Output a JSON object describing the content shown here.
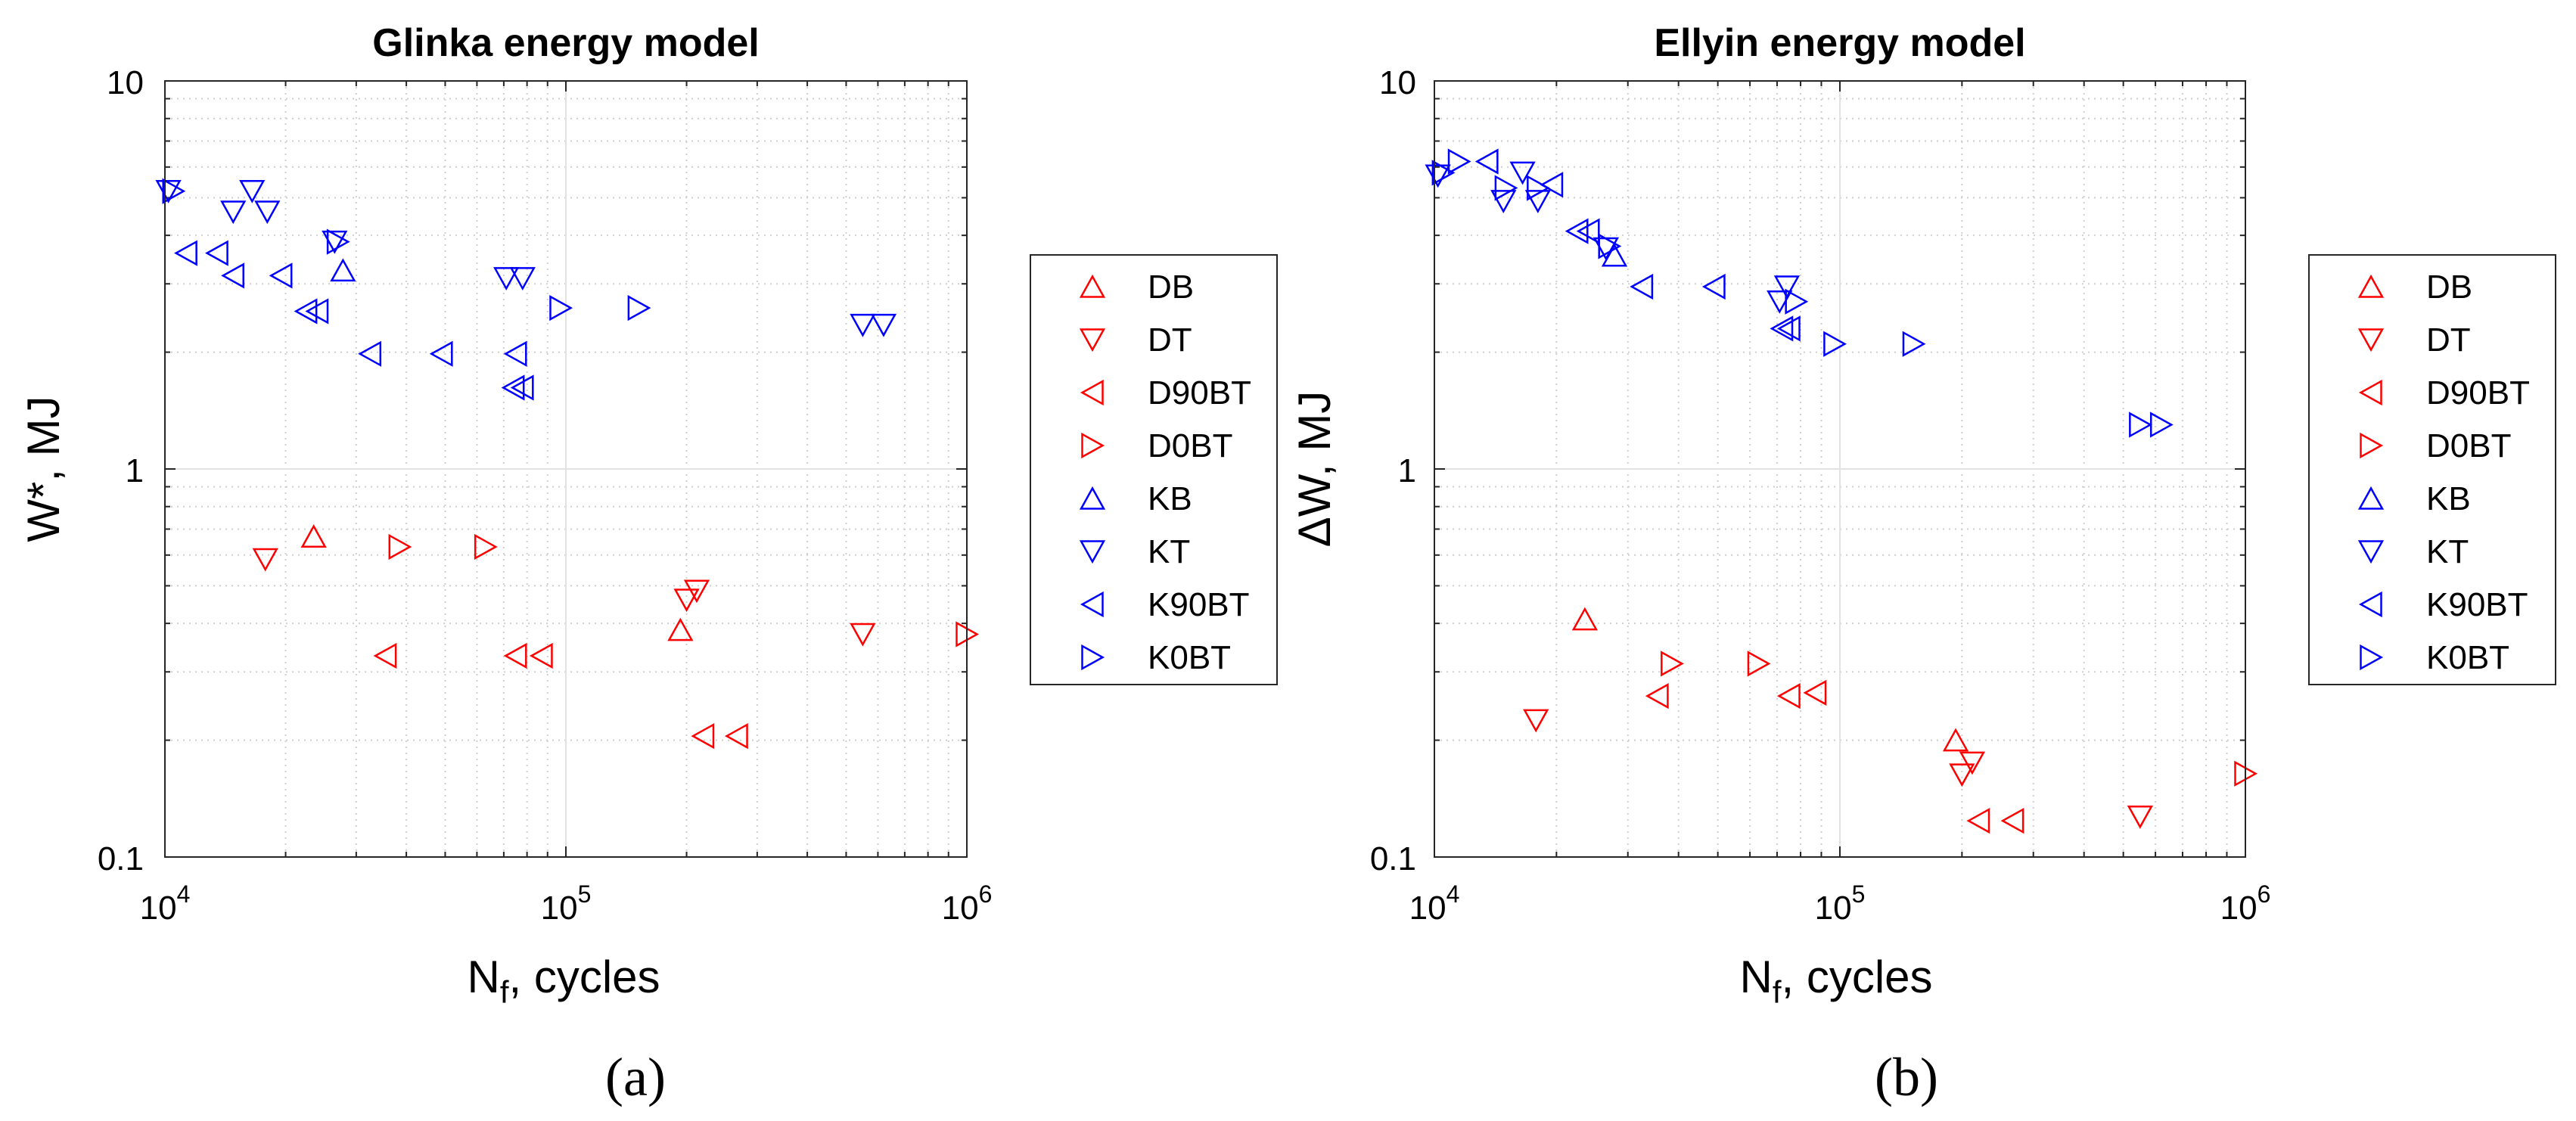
{
  "legend_order": [
    "DB",
    "DT",
    "D90BT",
    "D0BT",
    "KB",
    "KT",
    "K90BT",
    "K0BT"
  ],
  "series_colors": {
    "D": "#ff0000",
    "K": "#0000ff"
  },
  "series_markers": {
    "DB": "triangle-up",
    "DT": "triangle-down",
    "D90BT": "triangle-left",
    "D0BT": "triangle-right",
    "KB": "triangle-up",
    "KT": "triangle-down",
    "K90BT": "triangle-left",
    "K0BT": "triangle-right"
  },
  "chart_data": [
    {
      "type": "scatter",
      "title": "Glinka energy model",
      "xlabel_main": "N",
      "xlabel_sub": "f",
      "xlabel_rest": ", cycles",
      "ylabel": "W*, MJ",
      "xscale": "log",
      "yscale": "log",
      "xlim": [
        10000,
        1000000
      ],
      "ylim": [
        0.1,
        10
      ],
      "xticks": [
        {
          "base": "10",
          "exp": "4"
        },
        {
          "base": "10",
          "exp": "5"
        },
        {
          "base": "10",
          "exp": "6"
        }
      ],
      "yticks": [
        "0.1",
        "1",
        "10"
      ],
      "grid": true,
      "minor_grid": true,
      "legend_position": "right",
      "panel_label": "(a)",
      "series": [
        {
          "name": "DB",
          "points": [
            [
              23500,
              0.67
            ],
            [
              193000,
              0.385
            ]
          ]
        },
        {
          "name": "DT",
          "points": [
            [
              17800,
              0.585
            ],
            [
              550000,
              0.375
            ],
            [
              200000,
              0.46
            ],
            [
              212000,
              0.485
            ]
          ]
        },
        {
          "name": "D90BT",
          "points": [
            [
              35500,
              0.33
            ],
            [
              75000,
              0.33
            ],
            [
              87000,
              0.33
            ],
            [
              220000,
              0.205
            ],
            [
              267000,
              0.205
            ]
          ]
        },
        {
          "name": "D0BT",
          "points": [
            [
              38500,
              0.63
            ],
            [
              63000,
              0.63
            ],
            [
              1000000,
              0.375
            ]
          ]
        },
        {
          "name": "KB",
          "points": [
            [
              27800,
              3.25
            ]
          ]
        },
        {
          "name": "KT",
          "points": [
            [
              16500,
              5.2
            ],
            [
              14800,
              4.6
            ],
            [
              18000,
              4.6
            ],
            [
              10200,
              5.2
            ],
            [
              26500,
              3.85
            ],
            [
              71000,
              3.1
            ],
            [
              78000,
              3.1
            ],
            [
              550000,
              2.35
            ],
            [
              620000,
              2.35
            ]
          ]
        },
        {
          "name": "K90BT",
          "points": [
            [
              11300,
              3.6
            ],
            [
              13500,
              3.6
            ],
            [
              14800,
              3.15
            ],
            [
              19500,
              3.15
            ],
            [
              22500,
              2.55
            ],
            [
              24000,
              2.55
            ],
            [
              32500,
              1.98
            ],
            [
              49000,
              1.98
            ],
            [
              75000,
              1.98
            ],
            [
              74000,
              1.62
            ],
            [
              78000,
              1.62
            ]
          ]
        },
        {
          "name": "K0BT",
          "points": [
            [
              10500,
              5.2
            ],
            [
              27000,
              3.85
            ],
            [
              97000,
              2.6
            ],
            [
              152000,
              2.6
            ]
          ]
        }
      ]
    },
    {
      "type": "scatter",
      "title": "Ellyin energy model",
      "xlabel_main": "N",
      "xlabel_sub": "f",
      "xlabel_rest": ", cycles",
      "ylabel": "ΔW, MJ",
      "xscale": "log",
      "yscale": "log",
      "xlim": [
        10000,
        1000000
      ],
      "ylim": [
        0.1,
        10
      ],
      "xticks": [
        {
          "base": "10",
          "exp": "4"
        },
        {
          "base": "10",
          "exp": "5"
        },
        {
          "base": "10",
          "exp": "6"
        }
      ],
      "yticks": [
        "0.1",
        "1",
        "10"
      ],
      "grid": true,
      "minor_grid": true,
      "legend_position": "right",
      "panel_label": "(b)",
      "series": [
        {
          "name": "DB",
          "points": [
            [
              23500,
              0.41
            ],
            [
              193000,
              0.2
            ]
          ]
        },
        {
          "name": "DT",
          "points": [
            [
              17800,
              0.225
            ],
            [
              550000,
              0.127
            ],
            [
              200000,
              0.163
            ],
            [
              212000,
              0.175
            ]
          ]
        },
        {
          "name": "D90BT",
          "points": [
            [
              35500,
              0.26
            ],
            [
              75000,
              0.26
            ],
            [
              87000,
              0.265
            ],
            [
              220000,
              0.124
            ],
            [
              267000,
              0.124
            ]
          ]
        },
        {
          "name": "D0BT",
          "points": [
            [
              38500,
              0.315
            ],
            [
              63000,
              0.315
            ],
            [
              1000000,
              0.164
            ]
          ]
        },
        {
          "name": "KB",
          "points": [
            [
              27800,
              3.55
            ]
          ]
        },
        {
          "name": "KT",
          "points": [
            [
              16500,
              5.8
            ],
            [
              14800,
              4.9
            ],
            [
              18000,
              4.9
            ],
            [
              10200,
              5.7
            ],
            [
              26500,
              3.7
            ],
            [
              71000,
              2.7
            ],
            [
              74000,
              2.95
            ]
          ]
        },
        {
          "name": "K90BT",
          "points": [
            [
              13500,
              6.2
            ],
            [
              19500,
              5.4
            ],
            [
              22500,
              4.1
            ],
            [
              24000,
              4.1
            ],
            [
              32500,
              2.95
            ],
            [
              49000,
              2.95
            ],
            [
              72000,
              2.3
            ],
            [
              75000,
              2.3
            ]
          ]
        },
        {
          "name": "K0BT",
          "points": [
            [
              10500,
              5.8
            ],
            [
              11500,
              6.2
            ],
            [
              15000,
              5.3
            ],
            [
              18000,
              5.3
            ],
            [
              27000,
              3.75
            ],
            [
              78000,
              2.7
            ],
            [
              97000,
              2.1
            ],
            [
              152000,
              2.1
            ],
            [
              550000,
              1.3
            ],
            [
              620000,
              1.3
            ]
          ]
        }
      ]
    }
  ]
}
